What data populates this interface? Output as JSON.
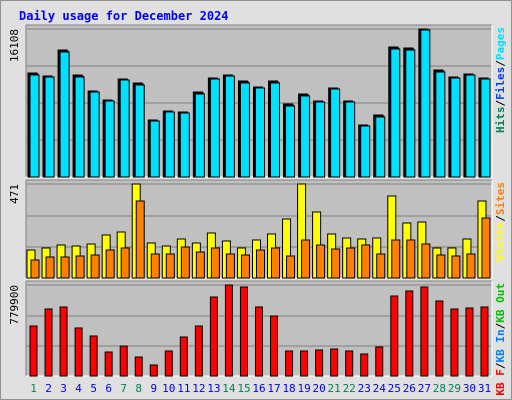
{
  "title": "Daily usage for December 2024",
  "colors": {
    "background": "#e0e0e0",
    "panel": "#c0c0c0",
    "title": "#0000ff",
    "hits": "#00805c",
    "files": "#0040ff",
    "pages": "#00e0ff",
    "visits": "#ffff00",
    "sites": "#ff8000",
    "kbytes": "#ff0000",
    "kb_in": "#0080ff",
    "kb_out": "#00c000",
    "weekend_day": "#00805c",
    "weekday": "#0000ff"
  },
  "chart_data": [
    {
      "type": "bar",
      "panel": "top",
      "ymax_label": "16108",
      "ylim": [
        0,
        16108
      ],
      "legend": [
        {
          "text": "Hits",
          "color": "#00805c"
        },
        {
          "text": "/",
          "color": "#000000"
        },
        {
          "text": "Files",
          "color": "#0040ff"
        },
        {
          "text": "/",
          "color": "#000000"
        },
        {
          "text": "Pages",
          "color": "#00e0ff"
        }
      ],
      "categories": [
        "1",
        "2",
        "3",
        "4",
        "5",
        "6",
        "7",
        "8",
        "9",
        "10",
        "11",
        "12",
        "13",
        "14",
        "15",
        "16",
        "17",
        "18",
        "19",
        "20",
        "21",
        "22",
        "23",
        "24",
        "25",
        "26",
        "27",
        "28",
        "29",
        "30",
        "31"
      ],
      "series": [
        {
          "name": "Hits",
          "color": "#00805c",
          "values": [
            11280,
            11000,
            13800,
            11100,
            9400,
            8400,
            10700,
            10200,
            6200,
            7200,
            7100,
            9200,
            10800,
            11100,
            10400,
            9800,
            10400,
            7900,
            9000,
            8300,
            9700,
            8300,
            5700,
            6700,
            14100,
            14000,
            16100,
            11600,
            10900,
            11200,
            10800
          ]
        },
        {
          "name": "Files",
          "color": "#0040ff",
          "values": [
            11180,
            10900,
            13700,
            10950,
            9300,
            8300,
            10600,
            10100,
            6100,
            7100,
            7000,
            9100,
            10700,
            11000,
            10300,
            9700,
            10300,
            7800,
            8900,
            8200,
            9600,
            8200,
            5600,
            6600,
            14000,
            13900,
            16000,
            11500,
            10800,
            11100,
            10700
          ]
        },
        {
          "name": "Pages",
          "color": "#00e0ff",
          "values": [
            11100,
            10850,
            13650,
            10900,
            9250,
            8250,
            10550,
            10050,
            6050,
            7050,
            6950,
            9050,
            10650,
            10950,
            10250,
            9650,
            10250,
            7750,
            8850,
            8150,
            9550,
            8150,
            5550,
            6550,
            13950,
            13850,
            15950,
            11450,
            10750,
            11050,
            10650
          ]
        }
      ]
    },
    {
      "type": "bar",
      "panel": "middle",
      "ymax_label": "471",
      "ylim": [
        0,
        471
      ],
      "legend": [
        {
          "text": "Visits",
          "color": "#ffff00"
        },
        {
          "text": "/",
          "color": "#000000"
        },
        {
          "text": "Sites",
          "color": "#ff8000"
        }
      ],
      "categories": [
        "1",
        "2",
        "3",
        "4",
        "5",
        "6",
        "7",
        "8",
        "9",
        "10",
        "11",
        "12",
        "13",
        "14",
        "15",
        "16",
        "17",
        "18",
        "19",
        "20",
        "21",
        "22",
        "23",
        "24",
        "25",
        "26",
        "27",
        "28",
        "29",
        "30",
        "31"
      ],
      "series": [
        {
          "name": "Visits",
          "color": "#ffff00",
          "values": [
            138,
            150,
            165,
            158,
            170,
            215,
            230,
            471,
            175,
            160,
            195,
            175,
            225,
            185,
            150,
            190,
            220,
            295,
            471,
            330,
            220,
            200,
            195,
            200,
            410,
            275,
            280,
            148,
            148,
            195,
            385
          ]
        },
        {
          "name": "Sites",
          "color": "#ff8000",
          "values": [
            88,
            103,
            105,
            112,
            115,
            140,
            150,
            385,
            120,
            120,
            155,
            130,
            150,
            120,
            115,
            140,
            150,
            110,
            188,
            165,
            145,
            150,
            165,
            120,
            190,
            190,
            170,
            115,
            110,
            120,
            300
          ]
        }
      ]
    },
    {
      "type": "bar",
      "panel": "bottom",
      "ymax_label": "779900",
      "ylim": [
        0,
        779900
      ],
      "legend": [
        {
          "text": "KB F",
          "color": "#ff0000"
        },
        {
          "text": "/",
          "color": "#000000"
        },
        {
          "text": "KB In",
          "color": "#0080ff"
        },
        {
          "text": "/",
          "color": "#000000"
        },
        {
          "text": "KB Out",
          "color": "#00c000"
        }
      ],
      "categories": [
        "1",
        "2",
        "3",
        "4",
        "5",
        "6",
        "7",
        "8",
        "9",
        "10",
        "11",
        "12",
        "13",
        "14",
        "15",
        "16",
        "17",
        "18",
        "19",
        "20",
        "21",
        "22",
        "23",
        "24",
        "25",
        "26",
        "27",
        "28",
        "29",
        "30",
        "31"
      ],
      "series": [
        {
          "name": "KB F",
          "color": "#ff0000",
          "values": [
            430000,
            575000,
            595000,
            410000,
            340000,
            205000,
            255000,
            165000,
            90000,
            210000,
            335000,
            425000,
            680000,
            779900,
            760000,
            590000,
            510000,
            215000,
            210000,
            220000,
            230000,
            210000,
            190000,
            245000,
            685000,
            725000,
            760000,
            640000,
            570000,
            585000,
            590000
          ]
        }
      ]
    }
  ],
  "x_labels": [
    {
      "text": "1",
      "weekend": true
    },
    {
      "text": "2",
      "weekend": false
    },
    {
      "text": "3",
      "weekend": false
    },
    {
      "text": "4",
      "weekend": false
    },
    {
      "text": "5",
      "weekend": false
    },
    {
      "text": "6",
      "weekend": false
    },
    {
      "text": "7",
      "weekend": true
    },
    {
      "text": "8",
      "weekend": true
    },
    {
      "text": "9",
      "weekend": false
    },
    {
      "text": "10",
      "weekend": false
    },
    {
      "text": "11",
      "weekend": false
    },
    {
      "text": "12",
      "weekend": false
    },
    {
      "text": "13",
      "weekend": false
    },
    {
      "text": "14",
      "weekend": true
    },
    {
      "text": "15",
      "weekend": true
    },
    {
      "text": "16",
      "weekend": false
    },
    {
      "text": "17",
      "weekend": false
    },
    {
      "text": "18",
      "weekend": false
    },
    {
      "text": "19",
      "weekend": false
    },
    {
      "text": "20",
      "weekend": false
    },
    {
      "text": "21",
      "weekend": true
    },
    {
      "text": "22",
      "weekend": true
    },
    {
      "text": "23",
      "weekend": false
    },
    {
      "text": "24",
      "weekend": false
    },
    {
      "text": "25",
      "weekend": false
    },
    {
      "text": "26",
      "weekend": false
    },
    {
      "text": "27",
      "weekend": false
    },
    {
      "text": "28",
      "weekend": true
    },
    {
      "text": "29",
      "weekend": true
    },
    {
      "text": "30",
      "weekend": false
    },
    {
      "text": "31",
      "weekend": false
    }
  ]
}
